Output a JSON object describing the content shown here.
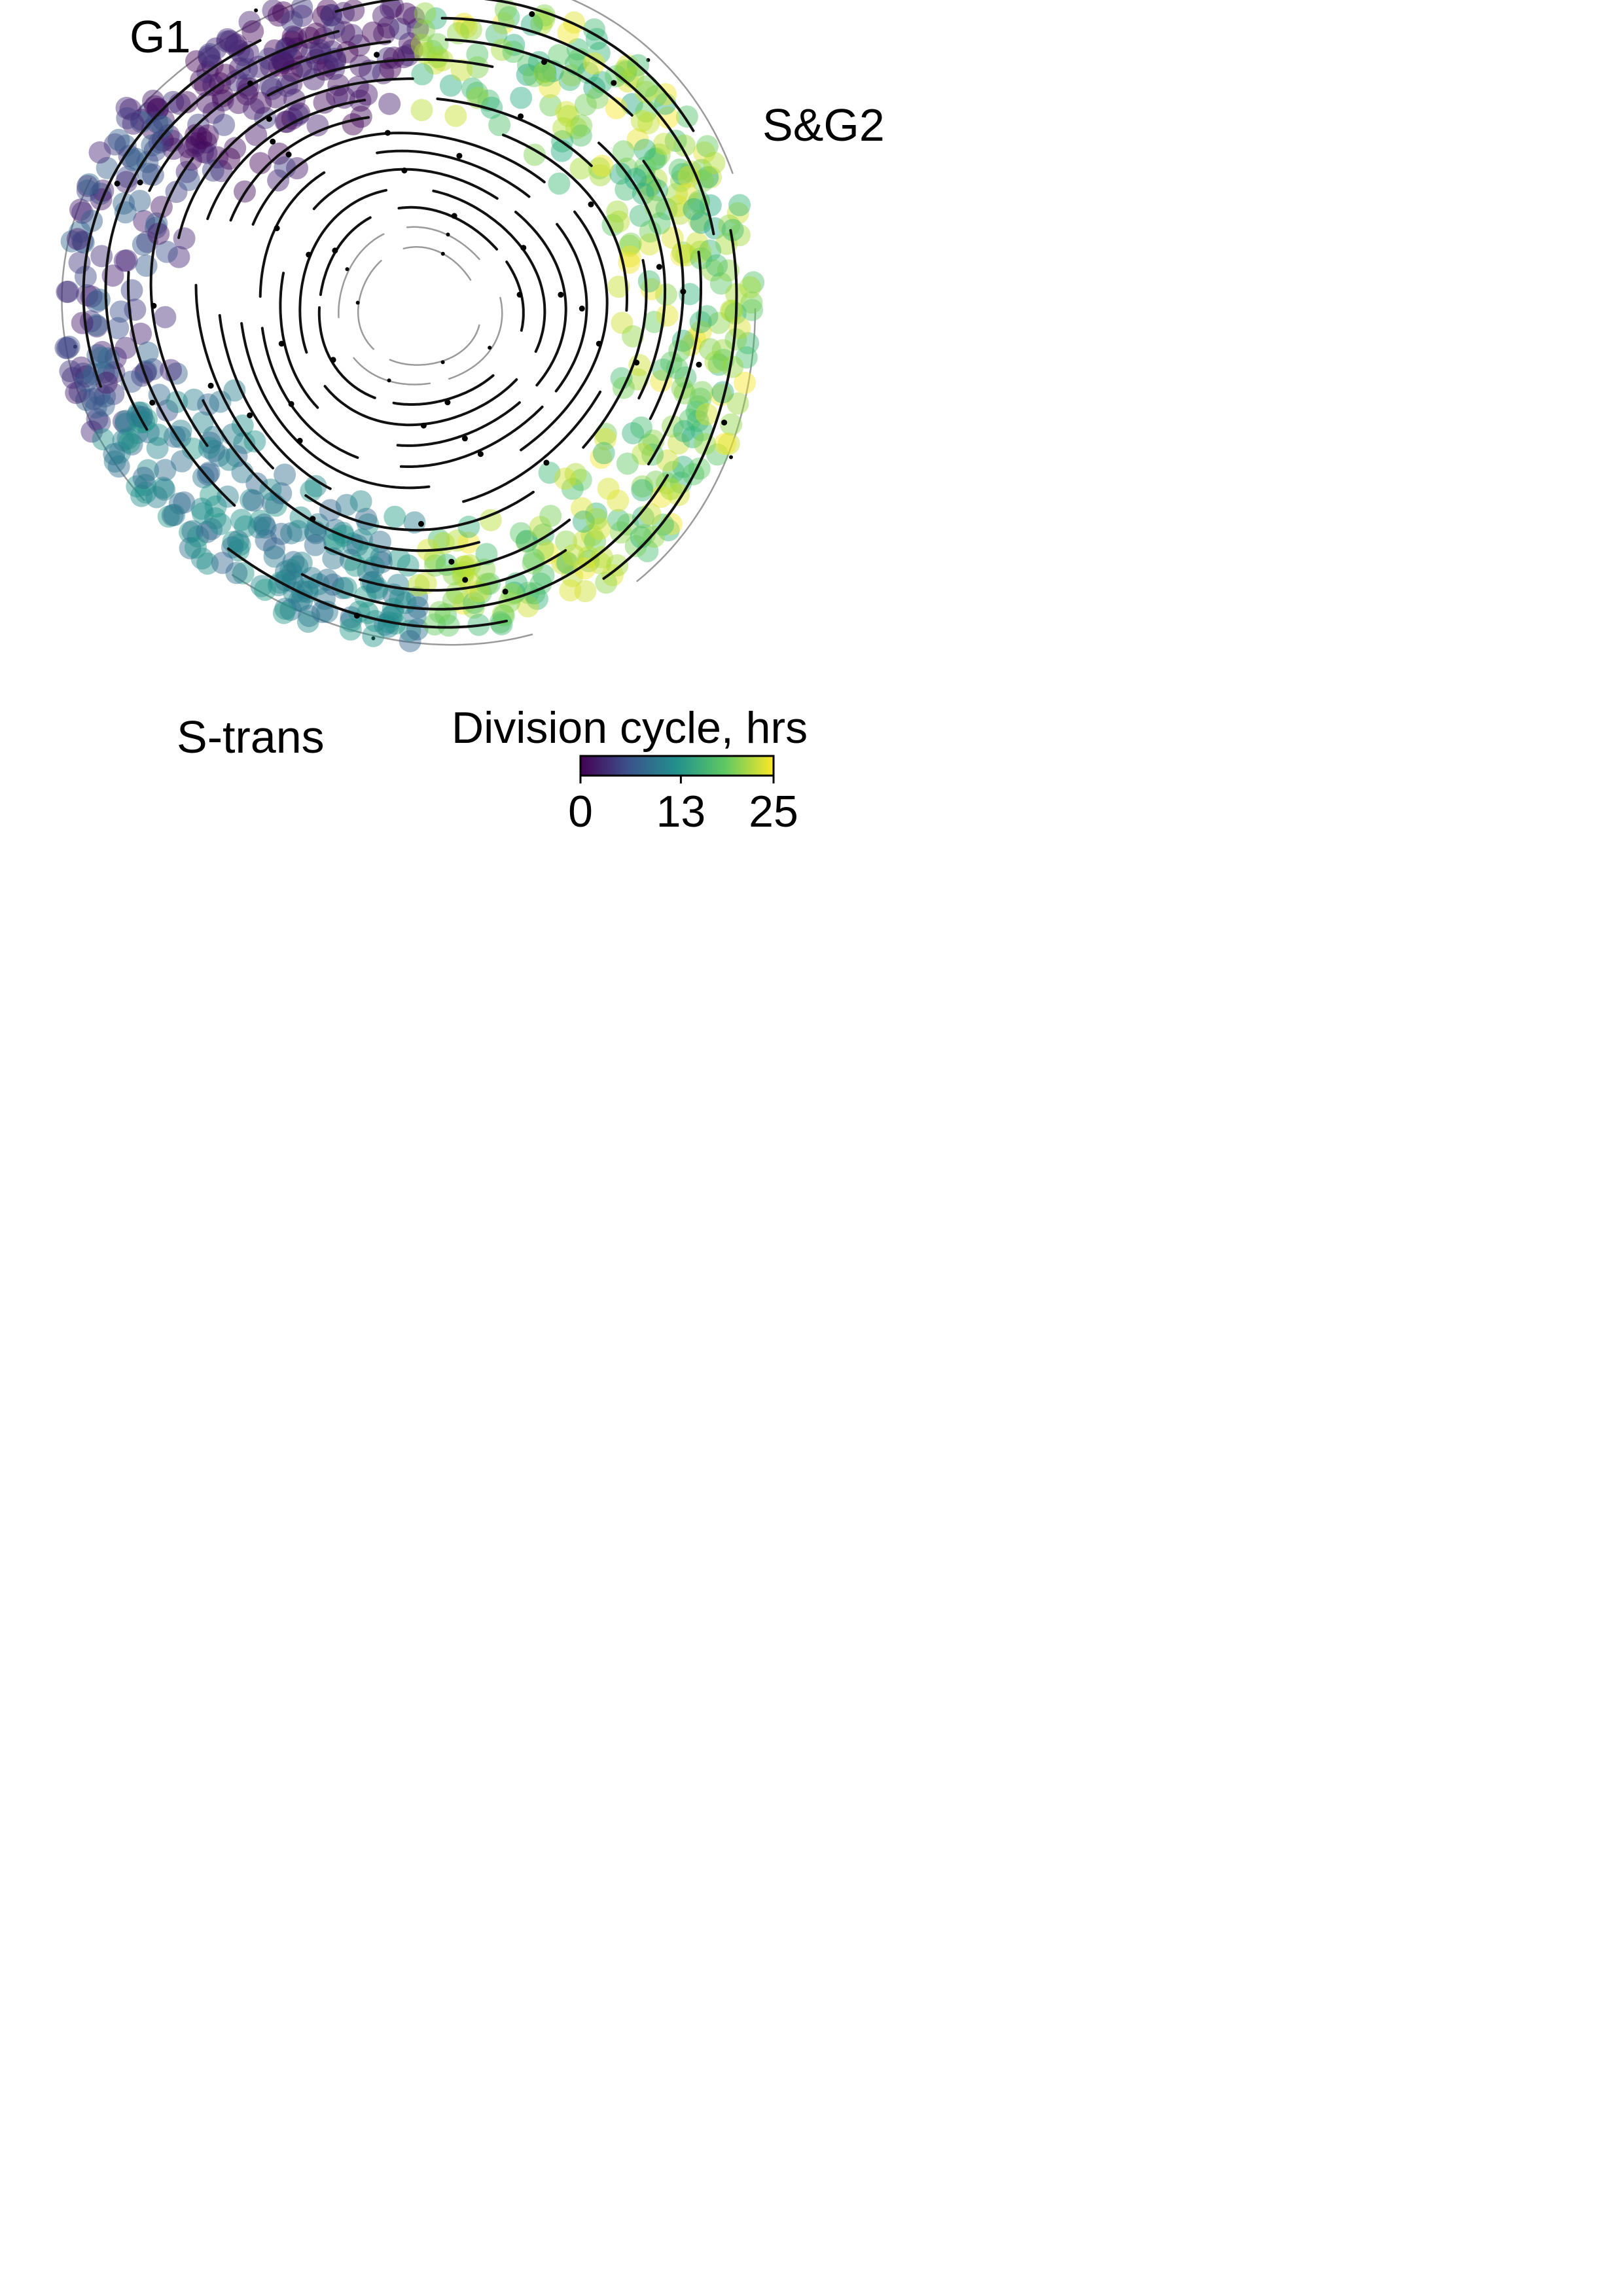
{
  "chart_data": {
    "type": "scatter",
    "title": "",
    "xlabel": "",
    "ylabel": "",
    "grid": false,
    "overlay": "velocity streamlines (black)",
    "region_labels": [
      "G1",
      "S&G2",
      "S-trans"
    ],
    "colorbar": {
      "title": "Division cycle, hrs",
      "colormap": "viridis",
      "range": [
        0,
        25
      ],
      "ticks": [
        0,
        13,
        25
      ],
      "placement": "bottom-right"
    },
    "point_groups": [
      {
        "region": "G1 arc (upper left)",
        "color_value_range": [
          0,
          5
        ],
        "approx_points": 180
      },
      {
        "region": "left side",
        "color_value_range": [
          2,
          9
        ],
        "approx_points": 120
      },
      {
        "region": "S-trans (bottom)",
        "color_value_range": [
          8,
          14
        ],
        "approx_points": 200
      },
      {
        "region": "S&G2 (upper right)",
        "color_value_range": [
          15,
          25
        ],
        "approx_points": 180
      },
      {
        "region": "right side",
        "color_value_range": [
          16,
          25
        ],
        "approx_points": 200
      }
    ]
  },
  "colors": {
    "viridis_0": "#440154",
    "viridis_25": "#3b528b",
    "viridis_50": "#21918c",
    "viridis_75": "#5ec962",
    "viridis_100": "#fde725",
    "streamline": "#111111"
  }
}
